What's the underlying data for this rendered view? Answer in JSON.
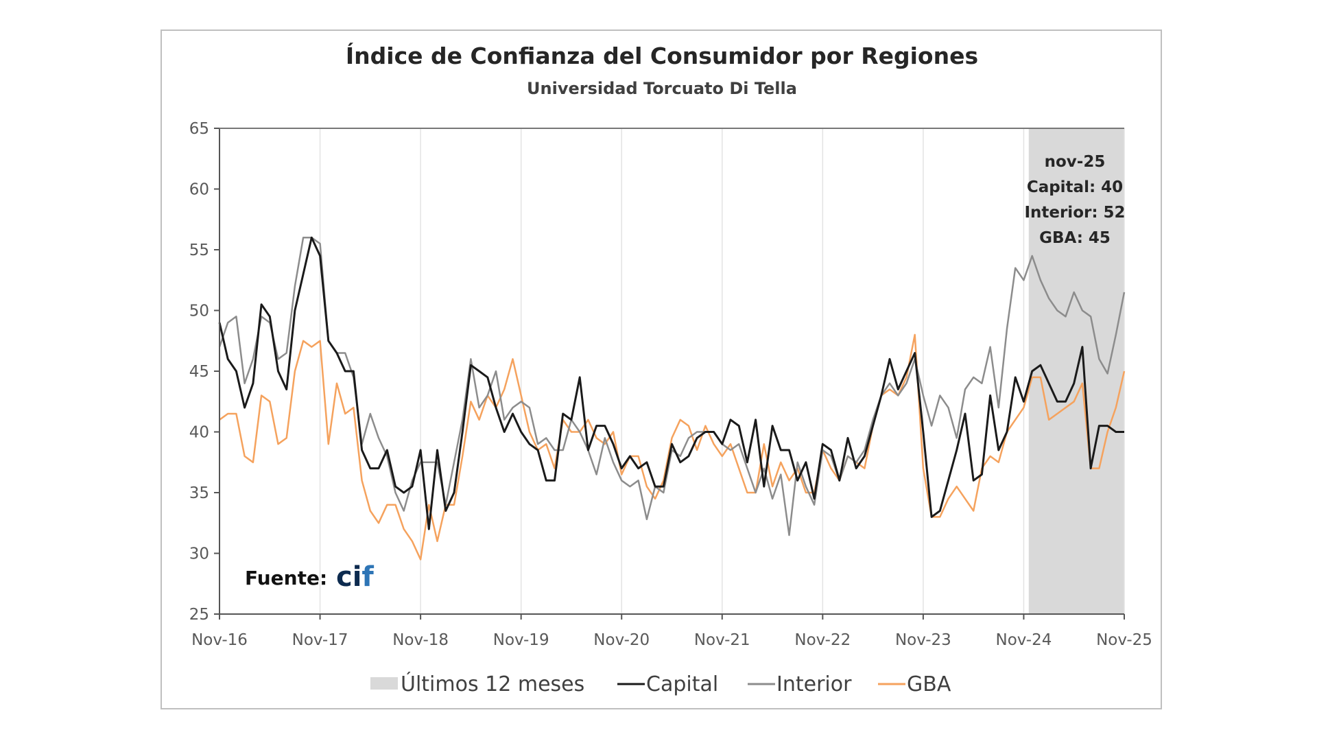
{
  "chart_data": {
    "type": "line",
    "title": "Índice de Confianza del Consumidor por Regiones",
    "subtitle": "Universidad Torcuato Di Tella",
    "x_start": "2016-11",
    "x_end": "2025-11",
    "x_frequency": "monthly",
    "x_tick_labels": [
      "Nov-16",
      "Nov-17",
      "Nov-18",
      "Nov-19",
      "Nov-20",
      "Nov-21",
      "Nov-22",
      "Nov-23",
      "Nov-24",
      "Nov-25"
    ],
    "ylim": [
      25,
      65
    ],
    "y_ticks": [
      25,
      30,
      35,
      40,
      45,
      50,
      55,
      60,
      65
    ],
    "grid": "vertical",
    "legend_position": "bottom",
    "shaded_region": {
      "name": "Últimos 12 meses",
      "from": "2024-12",
      "to": "2025-11",
      "color": "#d9d9d9"
    },
    "annotation": [
      "nov-25",
      "Capital: 40",
      "Interior: 52",
      "GBA: 45"
    ],
    "source_label": "Fuente: ",
    "source_logo": "cif",
    "series": [
      {
        "name": "Capital",
        "color": "#1a1a1a",
        "values": [
          49,
          46,
          45,
          42,
          44,
          50.5,
          49.5,
          45,
          43.5,
          50,
          53,
          56,
          54.5,
          47.5,
          46.5,
          45,
          45,
          38.5,
          37,
          37,
          38.5,
          35.5,
          35,
          35.5,
          38.5,
          32,
          38.5,
          33.5,
          35,
          40,
          45.5,
          45,
          44.5,
          42,
          40,
          41.5,
          40,
          39,
          38.5,
          36,
          36,
          41.5,
          41,
          44.5,
          38.5,
          40.5,
          40.5,
          39,
          37,
          38,
          37,
          37.5,
          35.5,
          35.5,
          39,
          37.5,
          38,
          39.5,
          40,
          40,
          39,
          41,
          40.5,
          37.5,
          41,
          35.5,
          40.5,
          38.5,
          38.5,
          36,
          37.5,
          34.5,
          39,
          38.5,
          36,
          39.5,
          37,
          38,
          40.5,
          43,
          46,
          43.5,
          45,
          46.5,
          40,
          33,
          33.5,
          36,
          38.5,
          41.5,
          36,
          36.5,
          43,
          38.5,
          40,
          44.5,
          42.5,
          45,
          45.5,
          44,
          42.5,
          42.5,
          44,
          47,
          37,
          40.5,
          40.5,
          40,
          40
        ]
      },
      {
        "name": "Interior",
        "color": "#8c8c8c",
        "values": [
          47,
          49,
          49.5,
          44,
          46,
          49.5,
          49,
          46,
          46.5,
          52,
          56,
          56,
          55.5,
          47.5,
          46.5,
          46.5,
          44.5,
          39,
          41.5,
          39.5,
          38,
          35,
          33.5,
          36,
          37.5,
          37.5,
          37.5,
          34,
          37.5,
          41,
          46,
          42,
          43,
          45,
          41,
          42,
          42.5,
          42,
          39,
          39.5,
          38.5,
          38.5,
          41,
          40,
          38.5,
          36.5,
          39.5,
          37.5,
          36,
          35.5,
          36,
          32.8,
          35.5,
          35,
          38.5,
          38,
          39.5,
          40,
          40,
          40,
          39,
          38.5,
          39,
          37,
          35,
          37,
          34.5,
          36.5,
          31.5,
          37.5,
          35.5,
          34,
          38.5,
          38,
          36,
          38,
          37.5,
          38.5,
          41,
          43,
          44,
          43,
          44,
          46,
          43,
          40.5,
          43,
          42,
          39.5,
          43.5,
          44.5,
          44,
          47,
          42,
          48.5,
          53.5,
          52.5,
          54.5,
          52.5,
          51,
          50,
          49.5,
          51.5,
          50,
          49.5,
          46,
          44.8,
          48,
          51.5
        ]
      },
      {
        "name": "GBA",
        "color": "#f5a25d",
        "values": [
          41,
          41.5,
          41.5,
          38,
          37.5,
          43,
          42.5,
          39,
          39.5,
          45,
          47.5,
          47,
          47.5,
          39,
          44,
          41.5,
          42,
          36,
          33.5,
          32.5,
          34,
          34,
          32,
          31,
          29.5,
          34,
          31,
          34,
          34,
          38,
          42.5,
          41,
          43,
          42,
          43.5,
          46,
          43,
          40,
          38.5,
          39,
          37,
          41,
          40,
          40,
          41,
          39.5,
          39,
          40,
          36.5,
          38,
          38,
          35.5,
          34.5,
          36,
          39.5,
          41,
          40.5,
          38.5,
          40.5,
          39,
          38,
          39,
          37,
          35,
          35,
          39,
          35.5,
          37.5,
          36,
          37,
          35,
          35,
          38.5,
          37,
          36,
          38,
          37.5,
          37,
          40.5,
          43,
          43.5,
          43,
          44.5,
          48,
          37,
          33,
          33,
          34.5,
          35.5,
          34.5,
          33.5,
          37,
          38,
          37.5,
          40,
          41,
          42,
          44.5,
          44.5,
          41,
          41.5,
          42,
          42.5,
          44,
          37,
          37,
          40,
          42,
          45
        ]
      }
    ]
  }
}
